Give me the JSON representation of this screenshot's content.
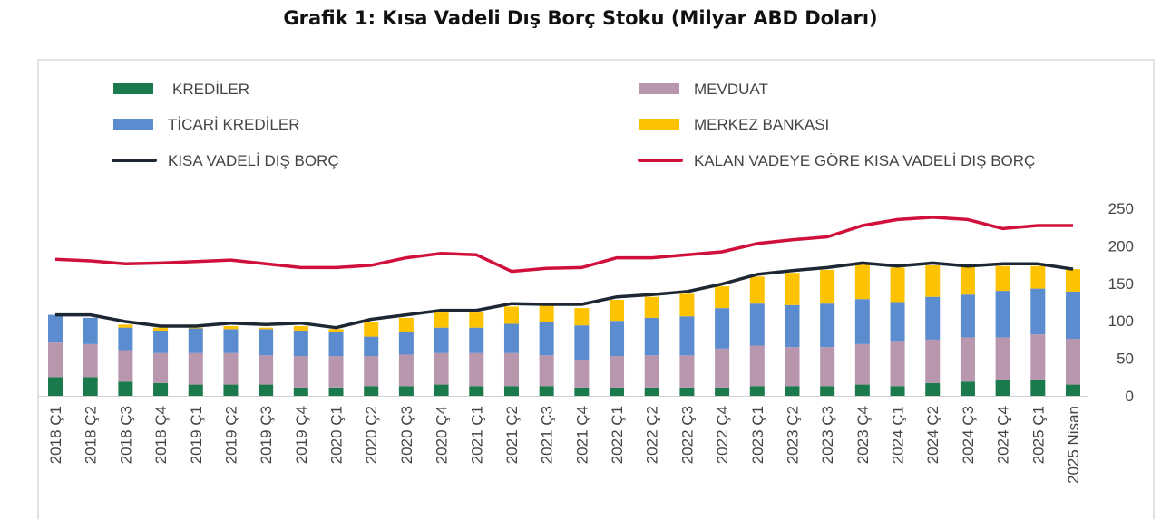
{
  "chart_data": {
    "type": "bar",
    "stacked": true,
    "title": "Grafik 1: Kısa Vadeli Dış Borç Stoku (Milyar ABD Doları)",
    "categories": [
      "2018 Ç1",
      "2018 Ç2",
      "2018 Ç3",
      "2018 Ç4",
      "2019 Ç1",
      "2019 Ç2",
      "2019 Ç3",
      "2019 Ç4",
      "2020 Ç1",
      "2020 Ç2",
      "2020 Ç3",
      "2020 Ç4",
      "2021 Ç1",
      "2021 Ç2",
      "2021 Ç3",
      "2021 Ç4",
      "2022 Ç1",
      "2022 Ç2",
      "2022 Ç3",
      "2022 Ç4",
      "2023 Ç1",
      "2023 Ç2",
      "2023 Ç3",
      "2023 Ç4",
      "2024 Ç1",
      "2024 Ç2",
      "2024 Ç3",
      "2024 Ç4",
      "2025 Ç1",
      "2025 Nisan"
    ],
    "ylim": [
      0,
      250
    ],
    "yticks": [
      0,
      50,
      100,
      150,
      200,
      250
    ],
    "y_axis_side": "right",
    "grid": false,
    "legend_position": "top",
    "bar_series": [
      {
        "name": "KREDİLER",
        "color": "#1b7a4b",
        "values": [
          25,
          25,
          19,
          17,
          15,
          15,
          15,
          11,
          11,
          13,
          13,
          15,
          13,
          13,
          13,
          11,
          11,
          11,
          11,
          11,
          13,
          13,
          13,
          15,
          13,
          17,
          19,
          21,
          21,
          15
        ]
      },
      {
        "name": "MEVDUAT",
        "color": "#b896ad",
        "values": [
          46,
          44,
          42,
          40,
          42,
          42,
          39,
          42,
          42,
          40,
          42,
          42,
          44,
          44,
          41,
          37,
          42,
          43,
          43,
          52,
          54,
          52,
          52,
          54,
          59,
          58,
          59,
          57,
          61,
          61
        ]
      },
      {
        "name": "TİCARİ KREDİLER",
        "color": "#5b8ccf",
        "values": [
          37,
          35,
          30,
          30,
          33,
          32,
          35,
          34,
          32,
          26,
          30,
          34,
          34,
          39,
          44,
          46,
          47,
          50,
          52,
          54,
          56,
          56,
          58,
          60,
          53,
          57,
          57,
          62,
          61,
          63
        ]
      },
      {
        "name": "MERKEZ BANKASI",
        "color": "#fdc300",
        "values": [
          0,
          0,
          4,
          4,
          1,
          4,
          2,
          6,
          4,
          19,
          19,
          20,
          20,
          23,
          22,
          23,
          28,
          28,
          30,
          29,
          36,
          43,
          45,
          46,
          46,
          42,
          37,
          33,
          30,
          30
        ]
      }
    ],
    "line_series": [
      {
        "name": "KISA VADELİ DIŞ BORÇ",
        "color": "#1c2733",
        "values": [
          108,
          108,
          99,
          93,
          93,
          97,
          95,
          97,
          91,
          102,
          108,
          114,
          114,
          123,
          122,
          122,
          132,
          135,
          139,
          149,
          162,
          167,
          171,
          177,
          173,
          177,
          173,
          176,
          176,
          169
        ]
      },
      {
        "name": "KALAN VADEYE GÖRE KISA VADELİ DIŞ BORÇ",
        "color": "#d0103a",
        "values": [
          182,
          180,
          176,
          177,
          179,
          181,
          176,
          171,
          171,
          174,
          184,
          190,
          188,
          166,
          170,
          171,
          184,
          184,
          188,
          192,
          203,
          208,
          212,
          227,
          235,
          238,
          235,
          223,
          227,
          227
        ]
      }
    ],
    "legend_order": [
      {
        "name": "KREDİLER",
        "kind": "bar"
      },
      {
        "name": "MEVDUAT",
        "kind": "bar"
      },
      {
        "name": "TİCARİ KREDİLER",
        "kind": "bar"
      },
      {
        "name": "MERKEZ BANKASI",
        "kind": "bar"
      },
      {
        "name": "KISA VADELİ DIŞ BORÇ",
        "kind": "line"
      },
      {
        "name": "KALAN VADEYE GÖRE KISA VADELİ DIŞ BORÇ",
        "kind": "line"
      }
    ]
  }
}
